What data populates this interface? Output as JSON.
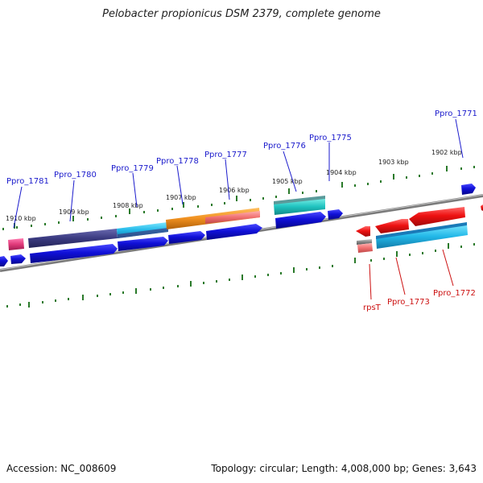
{
  "title": "Pelobacter propionicus DSM 2379, complete genome",
  "accession": "Accession: NC_008609",
  "summary": "Topology: circular; Length: 4,008,000 bp; Genes: 3,643",
  "kbp_ticks": [
    "1910 kbp",
    "1909 kbp",
    "1908 kbp",
    "1907 kbp",
    "1906 kbp",
    "1905 kbp",
    "1904 kbp",
    "1903 kbp",
    "1902 kbp"
  ],
  "top_gene_labels": [
    "Ppro_1781",
    "Ppro_1780",
    "Ppro_1779",
    "Ppro_1778",
    "Ppro_1777",
    "Ppro_1776",
    "Ppro_1775",
    "Ppro_1771"
  ],
  "bottom_gene_labels": [
    "rpsT",
    "Ppro_1773",
    "Ppro_1772"
  ],
  "colors": {
    "label_blue": "#1a1acc",
    "label_red": "#cc1111",
    "tick_green": "#2a7a2a",
    "gene_blue": "#1010d8",
    "gene_red": "#ee1111",
    "cyan": "#22b8d8",
    "teal": "#20c0c0",
    "orange": "#f09020",
    "navy": "#3a3a80",
    "pink": "#e03a7a",
    "salmon": "#f07070"
  }
}
